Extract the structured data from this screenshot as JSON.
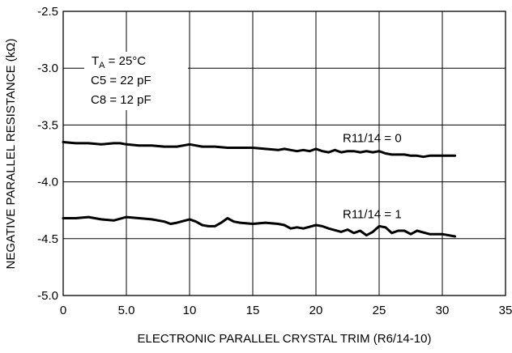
{
  "chart_data": {
    "type": "line",
    "xlabel": "ELECTRONIC PARALLEL CRYSTAL TRIM (R6/14-10)",
    "ylabel": "NEGATIVE PARALLEL RESISTANCE (kΩ)",
    "xlim": [
      0,
      35
    ],
    "ylim": [
      -5.0,
      -2.5
    ],
    "x_ticks": [
      "0",
      "5.0",
      "10",
      "15",
      "20",
      "25",
      "30",
      "35"
    ],
    "y_ticks": [
      "-2.5",
      "-3.0",
      "-3.5",
      "-4.0",
      "-4.5",
      "-5.0"
    ],
    "grid": true,
    "conditions": {
      "ta_main": "T",
      "ta_sub": "A",
      "ta_value": " = 25°C",
      "c5": "C5 = 22 pF",
      "c8": "C8 = 12 pF"
    },
    "series": [
      {
        "name": "R11/14 = 0",
        "x": [
          0,
          1,
          2,
          3,
          4,
          4.5,
          5,
          6,
          7,
          8,
          9,
          10,
          10.5,
          11,
          12,
          13,
          14,
          15,
          16,
          17,
          17.5,
          18,
          18.5,
          19,
          19.5,
          20,
          20.5,
          21,
          21.5,
          22,
          22.5,
          23,
          23.5,
          24,
          24.5,
          25,
          25.5,
          26,
          27,
          27.5,
          28,
          28.5,
          29,
          29.5,
          30,
          31
        ],
        "y": [
          -3.65,
          -3.66,
          -3.66,
          -3.67,
          -3.66,
          -3.66,
          -3.67,
          -3.68,
          -3.68,
          -3.69,
          -3.69,
          -3.67,
          -3.68,
          -3.69,
          -3.69,
          -3.7,
          -3.7,
          -3.7,
          -3.71,
          -3.72,
          -3.71,
          -3.72,
          -3.73,
          -3.72,
          -3.73,
          -3.71,
          -3.73,
          -3.74,
          -3.72,
          -3.74,
          -3.73,
          -3.73,
          -3.74,
          -3.73,
          -3.74,
          -3.73,
          -3.75,
          -3.76,
          -3.76,
          -3.77,
          -3.77,
          -3.78,
          -3.77,
          -3.77,
          -3.77,
          -3.77
        ]
      },
      {
        "name": "R11/14 = 1",
        "x": [
          0,
          1,
          2,
          3,
          4,
          5,
          6,
          7,
          8,
          8.5,
          9,
          10,
          10.5,
          11,
          11.5,
          12,
          12.5,
          13,
          13.5,
          14,
          15,
          16,
          17,
          17.5,
          18,
          18.5,
          19,
          20,
          20.5,
          21,
          22,
          22.5,
          23,
          23.5,
          24,
          24.5,
          25,
          25.5,
          26,
          26.5,
          27,
          27.5,
          28,
          29,
          30,
          31
        ],
        "y": [
          -4.32,
          -4.32,
          -4.31,
          -4.33,
          -4.34,
          -4.31,
          -4.32,
          -4.33,
          -4.35,
          -4.37,
          -4.36,
          -4.33,
          -4.35,
          -4.38,
          -4.39,
          -4.39,
          -4.36,
          -4.32,
          -4.35,
          -4.36,
          -4.37,
          -4.36,
          -4.37,
          -4.38,
          -4.41,
          -4.4,
          -4.41,
          -4.38,
          -4.39,
          -4.41,
          -4.44,
          -4.42,
          -4.45,
          -4.43,
          -4.47,
          -4.44,
          -4.39,
          -4.4,
          -4.45,
          -4.43,
          -4.43,
          -4.46,
          -4.43,
          -4.46,
          -4.46,
          -4.48
        ]
      }
    ]
  }
}
